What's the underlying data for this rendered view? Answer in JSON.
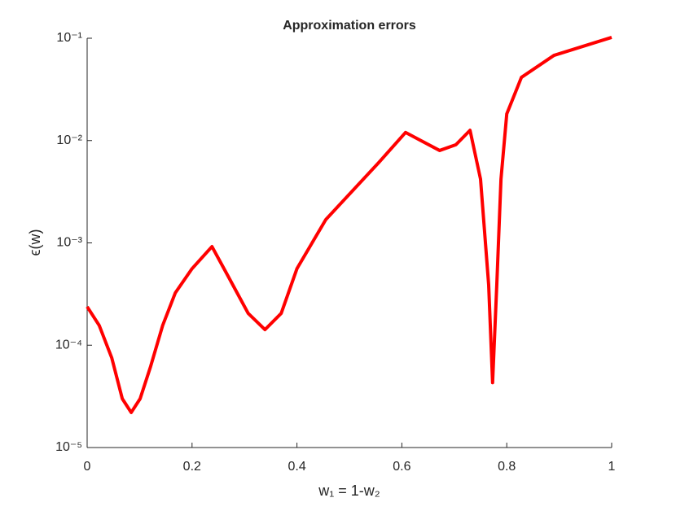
{
  "chart_data": {
    "type": "line",
    "title": "Approximation errors",
    "xlabel": "w₁ = 1-w₂",
    "ylabel": "ϵ(w)",
    "yscale": "log",
    "grid": false,
    "xlim": [
      0,
      1
    ],
    "xticks": [
      0,
      0.2,
      0.4,
      0.6,
      0.8,
      1
    ],
    "ylim": [
      1e-05,
      0.1
    ],
    "yticks": [
      {
        "value": 1e-05,
        "label": "10⁻⁵"
      },
      {
        "value": 0.0001,
        "label": "10⁻⁴"
      },
      {
        "value": 0.001,
        "label": "10⁻³"
      },
      {
        "value": 0.01,
        "label": "10⁻²"
      },
      {
        "value": 0.1,
        "label": "10⁻¹"
      }
    ],
    "x": [
      0,
      0.023,
      0.047,
      0.067,
      0.084,
      0.101,
      0.121,
      0.144,
      0.168,
      0.2,
      0.238,
      0.269,
      0.307,
      0.339,
      0.37,
      0.4,
      0.455,
      0.556,
      0.607,
      0.672,
      0.703,
      0.73,
      0.75,
      0.7655,
      0.773,
      0.781,
      0.789,
      0.8,
      0.828,
      0.89,
      1.0
    ],
    "series": [
      {
        "color": "#ff0000",
        "values": [
          0.000238,
          0.000156,
          7.5e-05,
          3e-05,
          2.2e-05,
          3e-05,
          6.2e-05,
          0.000156,
          0.000324,
          0.00056,
          0.00092,
          0.00047,
          0.000205,
          0.000142,
          0.000205,
          0.00056,
          0.00169,
          0.0061,
          0.012,
          0.008,
          0.0091,
          0.0126,
          0.0042,
          0.00039,
          4.3e-05,
          0.00039,
          0.0042,
          0.0182,
          0.0415,
          0.068,
          0.102
        ]
      }
    ]
  }
}
